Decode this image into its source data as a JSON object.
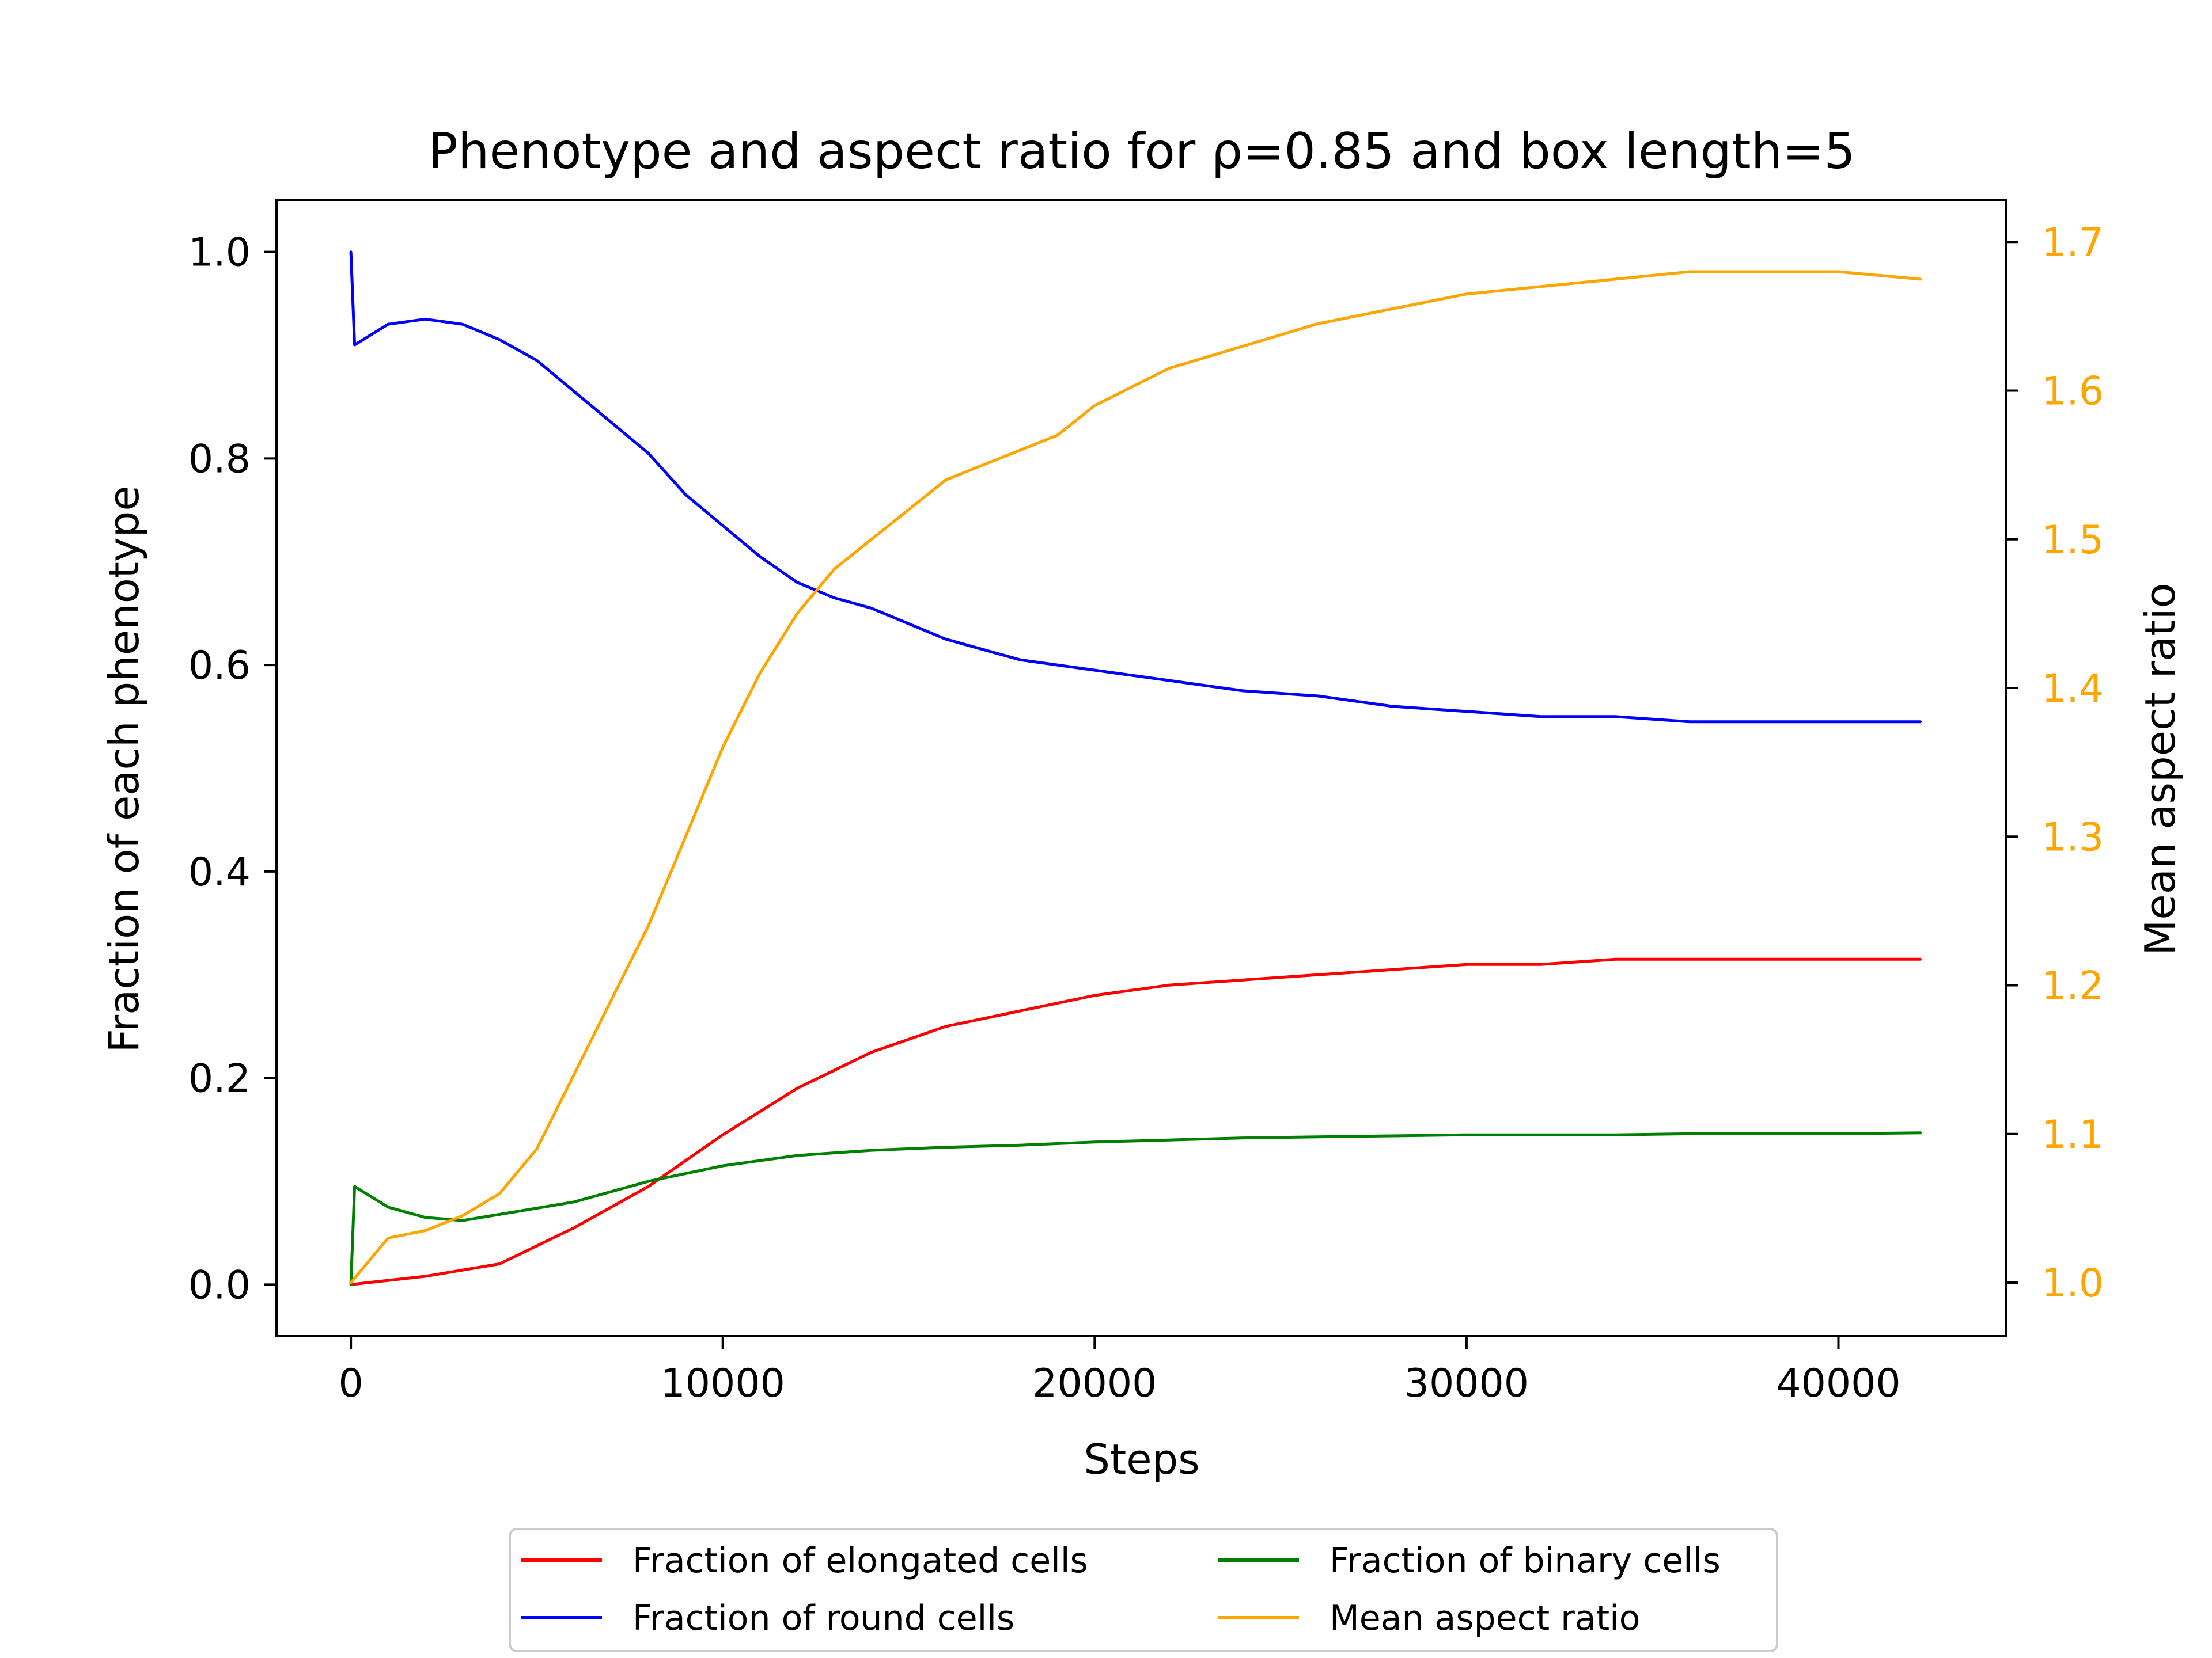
{
  "chart_data": {
    "type": "line",
    "title": "Phenotype and aspect ratio for ρ=0.85 and box length=5",
    "xlabel": "Steps",
    "ylabel_left": "Fraction of each phenotype",
    "ylabel_right": "Mean aspect ratio",
    "xlim": [
      -2000,
      44500
    ],
    "ylim_left": [
      -0.05,
      1.05
    ],
    "ylim_right": [
      0.964,
      1.728
    ],
    "x_ticks": [
      0,
      10000,
      20000,
      30000,
      40000
    ],
    "y_ticks_left": [
      0.0,
      0.2,
      0.4,
      0.6,
      0.8,
      1.0
    ],
    "y_ticks_right": [
      1.0,
      1.1,
      1.2,
      1.3,
      1.4,
      1.5,
      1.6,
      1.7
    ],
    "grid": false,
    "legend_position": "bottom-center",
    "right_axis_color": "#ffa500",
    "series": [
      {
        "name": "Fraction of elongated cells",
        "axis": "left",
        "color": "#ff0000",
        "x": [
          0,
          2000,
          4000,
          6000,
          8000,
          10000,
          12000,
          14000,
          16000,
          18000,
          20000,
          22000,
          24000,
          26000,
          28000,
          30000,
          32000,
          34000,
          36000,
          38000,
          40000,
          42200
        ],
        "values": [
          0.0,
          0.008,
          0.02,
          0.055,
          0.095,
          0.145,
          0.19,
          0.225,
          0.25,
          0.265,
          0.28,
          0.29,
          0.295,
          0.3,
          0.305,
          0.31,
          0.31,
          0.315,
          0.315,
          0.315,
          0.315,
          0.315
        ]
      },
      {
        "name": "Fraction of round cells",
        "axis": "left",
        "color": "#0000ff",
        "x": [
          0,
          100,
          1000,
          2000,
          3000,
          4000,
          5000,
          6000,
          7000,
          8000,
          9000,
          10000,
          11000,
          12000,
          13000,
          14000,
          15000,
          16000,
          18000,
          20000,
          22000,
          24000,
          26000,
          28000,
          30000,
          32000,
          34000,
          36000,
          38000,
          40000,
          42200
        ],
        "values": [
          1.0,
          0.91,
          0.93,
          0.935,
          0.93,
          0.915,
          0.895,
          0.865,
          0.835,
          0.805,
          0.765,
          0.735,
          0.705,
          0.68,
          0.665,
          0.655,
          0.64,
          0.625,
          0.605,
          0.595,
          0.585,
          0.575,
          0.57,
          0.56,
          0.555,
          0.55,
          0.55,
          0.545,
          0.545,
          0.545,
          0.545
        ]
      },
      {
        "name": "Fraction of binary cells",
        "axis": "left",
        "color": "#008000",
        "x": [
          0,
          100,
          1000,
          2000,
          3000,
          4000,
          6000,
          8000,
          10000,
          12000,
          14000,
          16000,
          18000,
          20000,
          22000,
          24000,
          26000,
          28000,
          30000,
          32000,
          34000,
          36000,
          38000,
          40000,
          42200
        ],
        "values": [
          0.0,
          0.095,
          0.075,
          0.065,
          0.062,
          0.068,
          0.08,
          0.1,
          0.115,
          0.125,
          0.13,
          0.133,
          0.135,
          0.138,
          0.14,
          0.142,
          0.143,
          0.144,
          0.145,
          0.145,
          0.145,
          0.146,
          0.146,
          0.146,
          0.147
        ]
      },
      {
        "name": "Mean aspect ratio",
        "axis": "right",
        "color": "#ffa500",
        "x": [
          0,
          1000,
          2000,
          3000,
          4000,
          5000,
          6000,
          7000,
          8000,
          9000,
          10000,
          11000,
          12000,
          13000,
          14000,
          15000,
          16000,
          17000,
          18000,
          19000,
          20000,
          22000,
          24000,
          26000,
          28000,
          30000,
          32000,
          34000,
          36000,
          38000,
          40000,
          42200
        ],
        "values": [
          1.0,
          1.03,
          1.035,
          1.045,
          1.06,
          1.09,
          1.14,
          1.19,
          1.24,
          1.3,
          1.36,
          1.41,
          1.45,
          1.48,
          1.5,
          1.52,
          1.54,
          1.55,
          1.56,
          1.57,
          1.59,
          1.615,
          1.63,
          1.645,
          1.655,
          1.665,
          1.67,
          1.675,
          1.68,
          1.68,
          1.68,
          1.675
        ]
      }
    ]
  }
}
